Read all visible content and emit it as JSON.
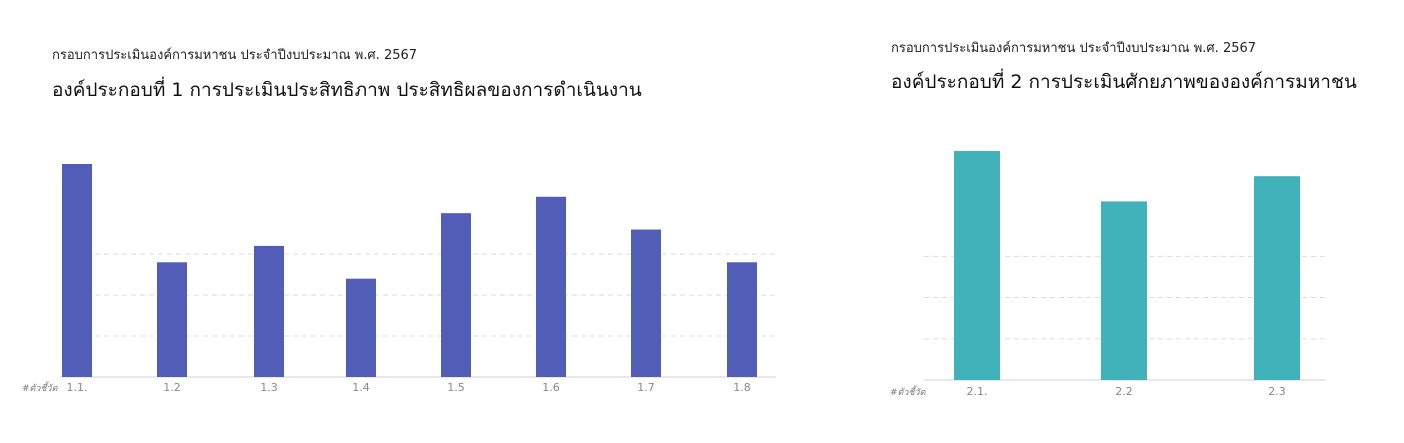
{
  "panels": [
    {
      "subtitle": "กรอบการประเมินองค์การมหาชน ประจำปีงบประมาณ พ.ศ. 2567",
      "title": "องค์ประกอบที่ 1 การประเมินประสิทธิภาพ ประสิทธิผลของการดำเนินงาน"
    },
    {
      "subtitle": "กรอบการประเมินองค์การมหาชน ประจำปีงบประมาณ พ.ศ. 2567",
      "title": "องค์ประกอบที่ 2 การประเมินศักยภาพขององค์การมหาชน"
    }
  ],
  "chart_data": [
    {
      "type": "bar",
      "title": "องค์ประกอบที่ 1 การประเมินประสิทธิภาพ ประสิทธิผลของการดำเนินงาน",
      "xlabel": "#ตัวชี้วัด",
      "ylabel": "",
      "categories": [
        "1.1.",
        "1.2",
        "1.3",
        "1.4",
        "1.5",
        "1.6",
        "1.7",
        "1.8"
      ],
      "values": [
        13,
        7,
        8,
        6,
        10,
        11,
        9,
        7
      ],
      "ylim": [
        0,
        13
      ],
      "gridlines": [
        2.5,
        5.0,
        7.5
      ],
      "grid": true,
      "color": "#525db8"
    },
    {
      "type": "bar",
      "title": "องค์ประกอบที่ 2 การประเมินศักยภาพขององค์การมหาชน",
      "xlabel": "#ตัวชี้วัด",
      "ylabel": "",
      "categories": [
        "2.1.",
        "2.2",
        "2.3"
      ],
      "values": [
        10,
        7.8,
        8.9
      ],
      "ylim": [
        0,
        10
      ],
      "gridlines": [
        1.8,
        3.6,
        5.4
      ],
      "grid": true,
      "color": "#42b2ba"
    }
  ]
}
